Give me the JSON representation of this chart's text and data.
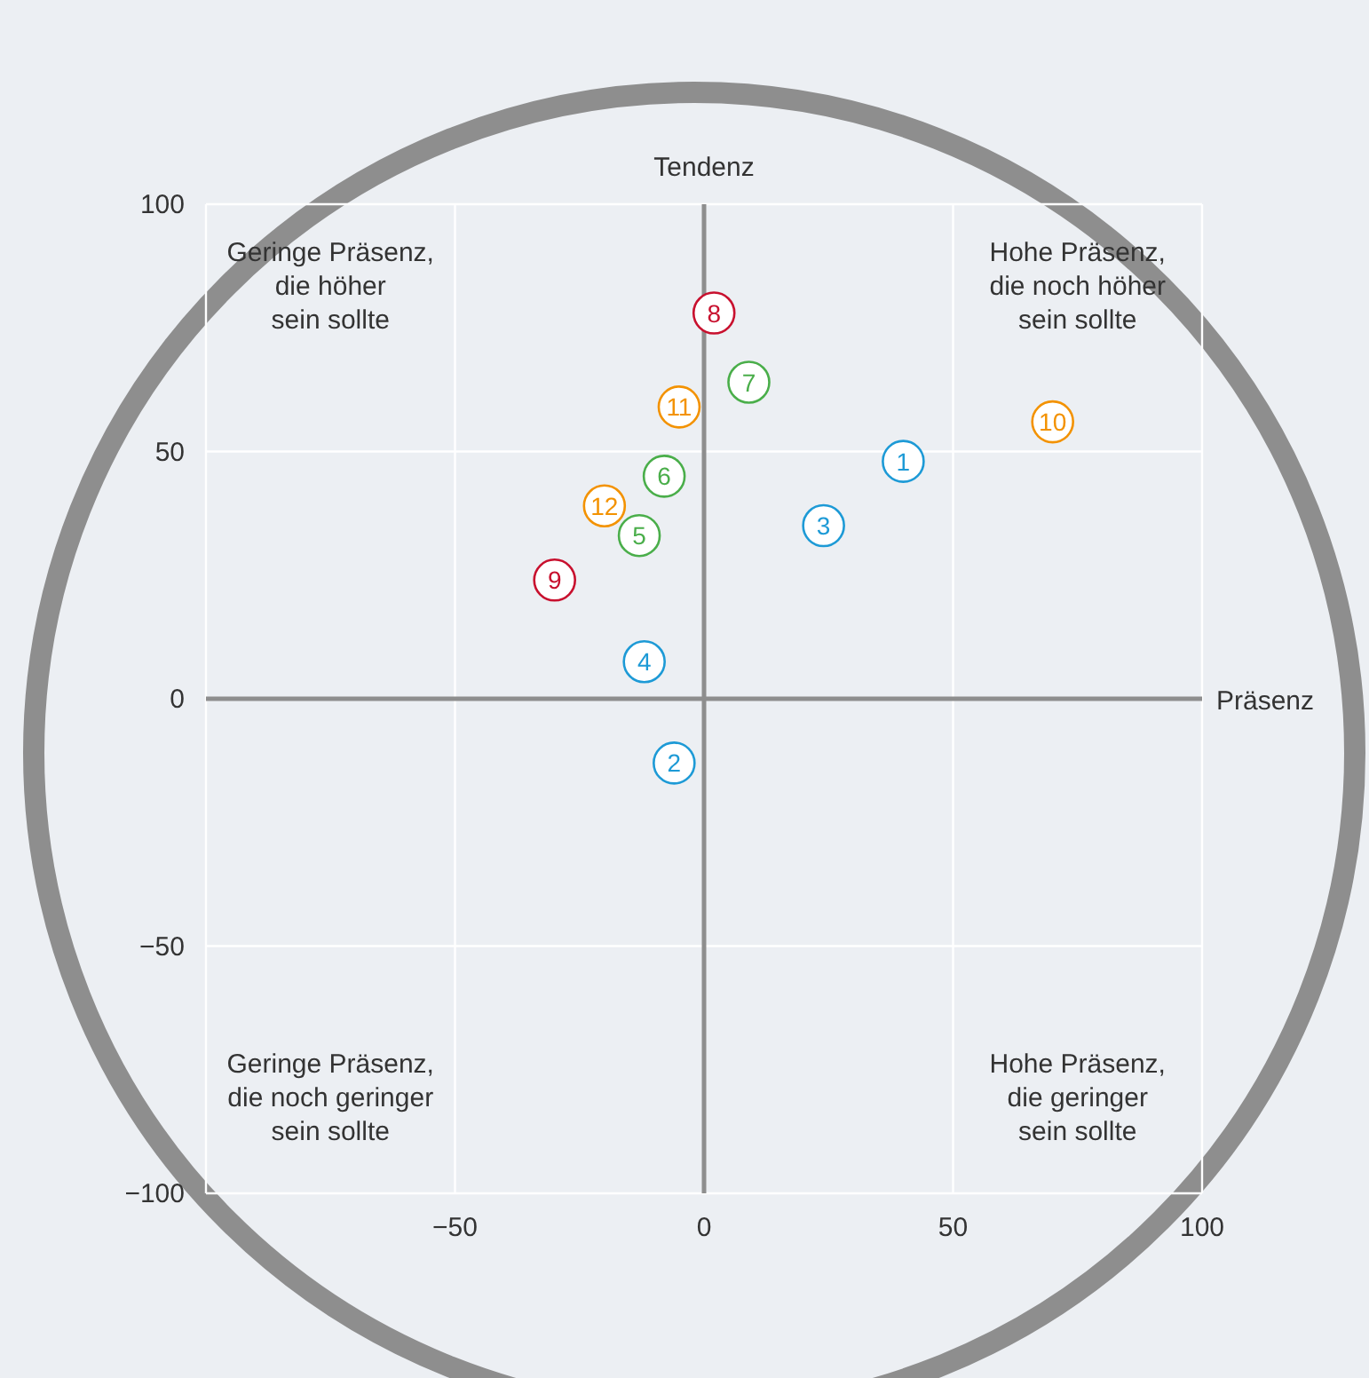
{
  "chart_data": {
    "type": "scatter",
    "xlabel": "Präsenz",
    "ylabel": "Tendenz",
    "xlim": [
      -100,
      100
    ],
    "ylim": [
      -100,
      100
    ],
    "xticks": [
      {
        "value": -100,
        "label": null
      },
      {
        "value": -50,
        "label": "−50"
      },
      0,
      50,
      100
    ],
    "yticks": [
      {
        "value": -100,
        "label": "−100"
      },
      {
        "value": -50,
        "label": "−50"
      },
      0,
      50,
      100
    ],
    "grid": true,
    "marker": "circle",
    "series": [
      {
        "color": "#1d9ad6",
        "x": [
          40,
          -6,
          24,
          -12
        ],
        "values": [
          48,
          -13,
          35,
          7.5
        ]
      },
      {
        "color": "#4aae4a",
        "x": [
          -13,
          -8,
          9
        ],
        "values": [
          33,
          45,
          64
        ]
      },
      {
        "color": "#c8102e",
        "x": [
          2,
          -30
        ],
        "values": [
          78,
          24
        ]
      },
      {
        "color": "#f39200",
        "x": [
          70,
          -5,
          -20
        ],
        "values": [
          56,
          59,
          39
        ]
      }
    ],
    "annotations": [
      "Geringe Präsenz,\ndie höher\nsein sollte",
      "Hohe Präsenz,\ndie noch höher\nsein sollte",
      "Geringe Präsenz,\ndie noch geringer\nsein sollte",
      "Hohe Präsenz,\ndie geringer\nsein sollte",
      {
        "text": "1",
        "x": 40,
        "y": 48
      },
      {
        "text": "2",
        "x": -6,
        "y": -13
      },
      {
        "text": "3",
        "x": 24,
        "y": 35
      },
      {
        "text": "4",
        "x": -12,
        "y": 7.5
      },
      {
        "text": "5",
        "x": -13,
        "y": 33
      },
      {
        "text": "6",
        "x": -8,
        "y": 45
      },
      {
        "text": "7",
        "x": 9,
        "y": 64
      },
      {
        "text": "8",
        "x": 2,
        "y": 78
      },
      {
        "text": "9",
        "x": -30,
        "y": 24
      },
      {
        "text": "10",
        "x": 70,
        "y": 56
      },
      {
        "text": "11",
        "x": -5,
        "y": 59
      },
      {
        "text": "12",
        "x": -20,
        "y": 39
      }
    ]
  }
}
